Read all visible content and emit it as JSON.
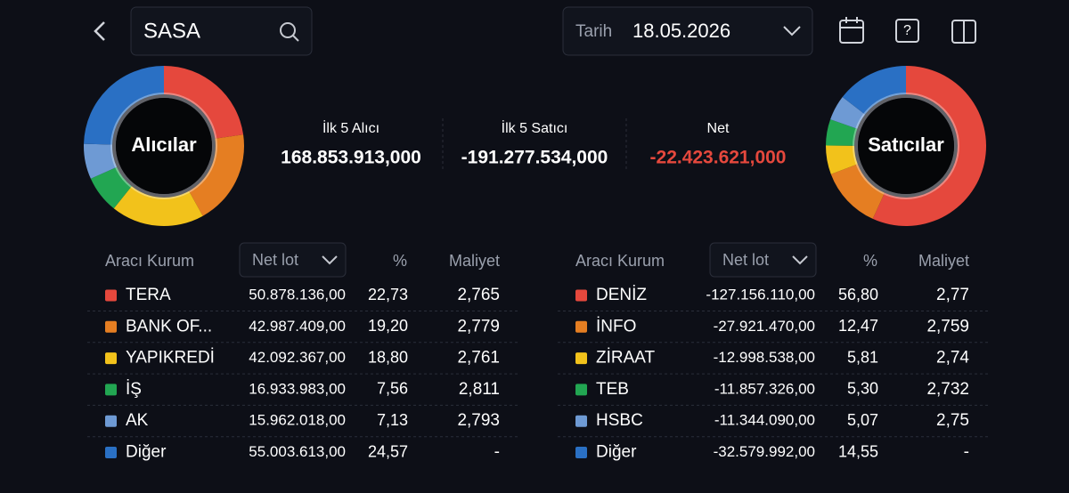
{
  "header": {
    "search": "SASA",
    "date_label": "Tarih",
    "date": "18.05.2026"
  },
  "summary": [
    {
      "label": "İlk 5 Alıcı",
      "value": "168.853.913,000"
    },
    {
      "label": "İlk 5 Satıcı",
      "value": "-191.277.534,000"
    },
    {
      "label": "Net",
      "value": "-22.423.621,000"
    }
  ],
  "tables": [
    {
      "donut_label": "Alıcılar",
      "columns": [
        "Aracı Kurum",
        "Net lot",
        "%",
        "Maliyet"
      ],
      "rows": [
        {
          "name": "TERA",
          "color": "#e5483d",
          "net_lot": "50.878.136,00",
          "percent": "22,73",
          "cost": "2,765"
        },
        {
          "name": "BANK OF...",
          "color": "#e57e22",
          "net_lot": "42.987.409,00",
          "percent": "19,20",
          "cost": "2,779"
        },
        {
          "name": "YAPIKREDİ",
          "color": "#f2c21b",
          "net_lot": "42.092.367,00",
          "percent": "18,80",
          "cost": "2,761"
        },
        {
          "name": "İŞ",
          "color": "#22a652",
          "net_lot": "16.933.983,00",
          "percent": "7,56",
          "cost": "2,811"
        },
        {
          "name": "AK",
          "color": "#6e9ad4",
          "net_lot": "15.962.018,00",
          "percent": "7,13",
          "cost": "2,793"
        },
        {
          "name": "Diğer",
          "color": "#2a70c4",
          "net_lot": "55.003.613,00",
          "percent": "24,57",
          "cost": "-"
        }
      ]
    },
    {
      "donut_label": "Satıcılar",
      "columns": [
        "Aracı Kurum",
        "Net lot",
        "%",
        "Maliyet"
      ],
      "rows": [
        {
          "name": "DENİZ",
          "color": "#e5483d",
          "net_lot": "-127.156.110,00",
          "percent": "56,80",
          "cost": "2,77"
        },
        {
          "name": "İNFO",
          "color": "#e57e22",
          "net_lot": "-27.921.470,00",
          "percent": "12,47",
          "cost": "2,759"
        },
        {
          "name": "ZİRAAT",
          "color": "#f2c21b",
          "net_lot": "-12.998.538,00",
          "percent": "5,81",
          "cost": "2,74"
        },
        {
          "name": "TEB",
          "color": "#22a652",
          "net_lot": "-11.857.326,00",
          "percent": "5,30",
          "cost": "2,732"
        },
        {
          "name": "HSBC",
          "color": "#6e9ad4",
          "net_lot": "-11.344.090,00",
          "percent": "5,07",
          "cost": "2,75"
        },
        {
          "name": "Diğer",
          "color": "#2a70c4",
          "net_lot": "-32.579.992,00",
          "percent": "14,55",
          "cost": "-"
        }
      ]
    }
  ]
}
